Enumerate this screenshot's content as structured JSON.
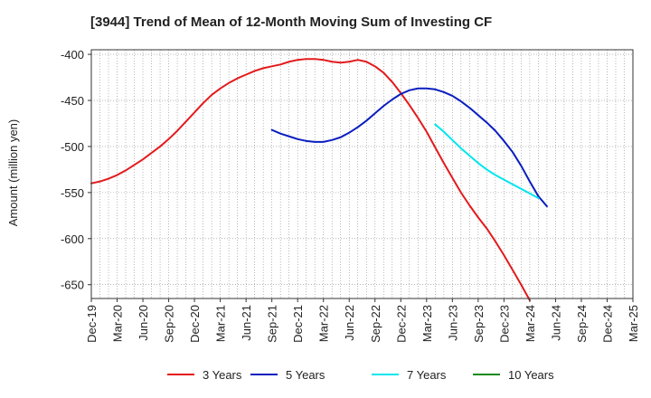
{
  "chart_data": {
    "type": "line",
    "title": "[3944]  Trend of Mean of 12-Month Moving Sum of Investing CF",
    "xlabel": "",
    "ylabel": "Amount (million yen)",
    "ylim": [
      -665,
      -395
    ],
    "yticks": [
      -400,
      -450,
      -500,
      -550,
      -600,
      -650
    ],
    "grid": true,
    "legend_position": "bottom",
    "x_tick_labels": [
      "Dec-19",
      "Mar-20",
      "Jun-20",
      "Sep-20",
      "Dec-20",
      "Mar-21",
      "Jun-21",
      "Sep-21",
      "Dec-21",
      "Mar-22",
      "Jun-22",
      "Sep-22",
      "Dec-22",
      "Mar-23",
      "Jun-23",
      "Sep-23",
      "Dec-23",
      "Mar-24",
      "Jun-24",
      "Sep-24",
      "Dec-24",
      "Mar-25"
    ],
    "series": [
      {
        "name": "3 Years",
        "color": "#e31a1c",
        "start_index": 0,
        "values": [
          -540,
          -538,
          -535,
          -531,
          -526,
          -520,
          -514,
          -507,
          -500,
          -492,
          -483,
          -473,
          -463,
          -453,
          -444,
          -437,
          -431,
          -426,
          -422,
          -418,
          -415,
          -413,
          -411,
          -408,
          -406,
          -405,
          -405,
          -406,
          -408,
          -409,
          -408,
          -406,
          -408,
          -413,
          -420,
          -430,
          -442,
          -455,
          -469,
          -484,
          -501,
          -518,
          -534,
          -550,
          -564,
          -577,
          -589,
          -603,
          -618,
          -634,
          -650,
          -667
        ]
      },
      {
        "name": "5 Years",
        "color": "#0a1ebf",
        "start_index": 21,
        "values": [
          -482,
          -486,
          -489,
          -492,
          -494,
          -495,
          -495,
          -493,
          -490,
          -485,
          -479,
          -472,
          -464,
          -456,
          -449,
          -443,
          -439,
          -437,
          -437,
          -438,
          -441,
          -445,
          -451,
          -458,
          -466,
          -474,
          -483,
          -494,
          -506,
          -521,
          -538,
          -554,
          -565
        ]
      },
      {
        "name": "7 Years",
        "color": "#00e5ee",
        "start_index": 40,
        "values": [
          -476,
          -484,
          -493,
          -502,
          -510,
          -518,
          -525,
          -531,
          -536,
          -541,
          -546,
          -551,
          -556
        ]
      },
      {
        "name": "10 Years",
        "color": "#1a8a1a",
        "start_index": 0,
        "values": []
      }
    ]
  }
}
